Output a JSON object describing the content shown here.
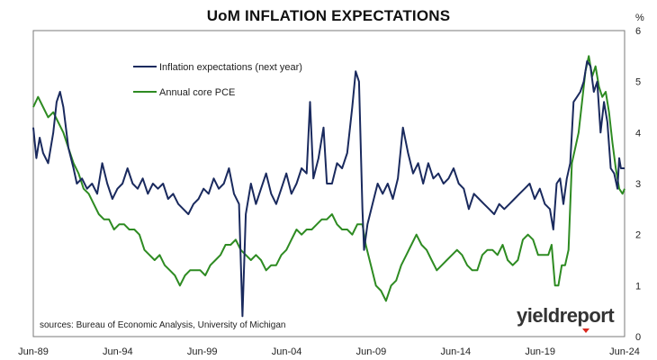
{
  "chart_data": {
    "type": "line",
    "title": "UoM INFLATION EXPECTATIONS",
    "y_unit": "%",
    "ylim": [
      0,
      6
    ],
    "y_ticks": [
      0,
      1,
      2,
      3,
      4,
      5,
      6
    ],
    "x_range": [
      1989.42,
      2024.42
    ],
    "x_ticks": [
      {
        "label": "Jun-89",
        "x": 1989.42
      },
      {
        "label": "Jun-94",
        "x": 1994.42
      },
      {
        "label": "Jun-99",
        "x": 1999.42
      },
      {
        "label": "Jun-04",
        "x": 2004.42
      },
      {
        "label": "Jun-09",
        "x": 2009.42
      },
      {
        "label": "Jun-14",
        "x": 2014.42
      },
      {
        "label": "Jun-19",
        "x": 2019.42
      },
      {
        "label": "Jun-24",
        "x": 2024.42
      }
    ],
    "grid": false,
    "legend": "top-left",
    "series": [
      {
        "name": "Inflation expectations (next year)",
        "color": "#1a2a5e",
        "points": [
          [
            1989.42,
            4.1
          ],
          [
            1989.6,
            3.5
          ],
          [
            1989.8,
            3.9
          ],
          [
            1990.0,
            3.6
          ],
          [
            1990.3,
            3.4
          ],
          [
            1990.6,
            4.0
          ],
          [
            1990.8,
            4.6
          ],
          [
            1991.0,
            4.8
          ],
          [
            1991.2,
            4.5
          ],
          [
            1991.5,
            3.7
          ],
          [
            1991.8,
            3.3
          ],
          [
            1992.0,
            3.0
          ],
          [
            1992.3,
            3.1
          ],
          [
            1992.6,
            2.9
          ],
          [
            1992.9,
            3.0
          ],
          [
            1993.2,
            2.8
          ],
          [
            1993.5,
            3.4
          ],
          [
            1993.8,
            3.0
          ],
          [
            1994.1,
            2.7
          ],
          [
            1994.4,
            2.9
          ],
          [
            1994.7,
            3.0
          ],
          [
            1995.0,
            3.3
          ],
          [
            1995.3,
            3.0
          ],
          [
            1995.6,
            2.9
          ],
          [
            1995.9,
            3.1
          ],
          [
            1996.2,
            2.8
          ],
          [
            1996.5,
            3.0
          ],
          [
            1996.8,
            2.9
          ],
          [
            1997.1,
            3.0
          ],
          [
            1997.4,
            2.7
          ],
          [
            1997.7,
            2.8
          ],
          [
            1998.0,
            2.6
          ],
          [
            1998.3,
            2.5
          ],
          [
            1998.6,
            2.4
          ],
          [
            1998.9,
            2.6
          ],
          [
            1999.2,
            2.7
          ],
          [
            1999.5,
            2.9
          ],
          [
            1999.8,
            2.8
          ],
          [
            2000.1,
            3.1
          ],
          [
            2000.4,
            2.9
          ],
          [
            2000.7,
            3.0
          ],
          [
            2001.0,
            3.3
          ],
          [
            2001.3,
            2.8
          ],
          [
            2001.6,
            2.6
          ],
          [
            2001.8,
            0.4
          ],
          [
            2002.0,
            2.4
          ],
          [
            2002.3,
            3.0
          ],
          [
            2002.6,
            2.6
          ],
          [
            2002.9,
            2.9
          ],
          [
            2003.2,
            3.2
          ],
          [
            2003.5,
            2.8
          ],
          [
            2003.8,
            2.6
          ],
          [
            2004.1,
            2.9
          ],
          [
            2004.4,
            3.2
          ],
          [
            2004.7,
            2.8
          ],
          [
            2005.0,
            3.0
          ],
          [
            2005.3,
            3.3
          ],
          [
            2005.6,
            3.2
          ],
          [
            2005.8,
            4.6
          ],
          [
            2006.0,
            3.1
          ],
          [
            2006.3,
            3.5
          ],
          [
            2006.6,
            4.1
          ],
          [
            2006.8,
            3.0
          ],
          [
            2007.1,
            3.0
          ],
          [
            2007.4,
            3.4
          ],
          [
            2007.7,
            3.3
          ],
          [
            2008.0,
            3.6
          ],
          [
            2008.3,
            4.5
          ],
          [
            2008.5,
            5.2
          ],
          [
            2008.7,
            5.0
          ],
          [
            2008.9,
            2.5
          ],
          [
            2009.0,
            1.7
          ],
          [
            2009.2,
            2.2
          ],
          [
            2009.5,
            2.6
          ],
          [
            2009.8,
            3.0
          ],
          [
            2010.1,
            2.8
          ],
          [
            2010.4,
            3.0
          ],
          [
            2010.7,
            2.7
          ],
          [
            2011.0,
            3.1
          ],
          [
            2011.3,
            4.1
          ],
          [
            2011.6,
            3.6
          ],
          [
            2011.9,
            3.2
          ],
          [
            2012.2,
            3.4
          ],
          [
            2012.5,
            3.0
          ],
          [
            2012.8,
            3.4
          ],
          [
            2013.1,
            3.1
          ],
          [
            2013.4,
            3.2
          ],
          [
            2013.7,
            3.0
          ],
          [
            2014.0,
            3.1
          ],
          [
            2014.3,
            3.3
          ],
          [
            2014.6,
            3.0
          ],
          [
            2014.9,
            2.9
          ],
          [
            2015.2,
            2.5
          ],
          [
            2015.5,
            2.8
          ],
          [
            2015.8,
            2.7
          ],
          [
            2016.1,
            2.6
          ],
          [
            2016.4,
            2.5
          ],
          [
            2016.7,
            2.4
          ],
          [
            2017.0,
            2.6
          ],
          [
            2017.3,
            2.5
          ],
          [
            2017.6,
            2.6
          ],
          [
            2017.9,
            2.7
          ],
          [
            2018.2,
            2.8
          ],
          [
            2018.5,
            2.9
          ],
          [
            2018.8,
            3.0
          ],
          [
            2019.1,
            2.7
          ],
          [
            2019.4,
            2.9
          ],
          [
            2019.7,
            2.6
          ],
          [
            2020.0,
            2.5
          ],
          [
            2020.2,
            2.1
          ],
          [
            2020.4,
            3.0
          ],
          [
            2020.6,
            3.1
          ],
          [
            2020.8,
            2.6
          ],
          [
            2021.0,
            3.1
          ],
          [
            2021.2,
            3.4
          ],
          [
            2021.4,
            4.6
          ],
          [
            2021.6,
            4.7
          ],
          [
            2021.8,
            4.8
          ],
          [
            2022.0,
            5.0
          ],
          [
            2022.2,
            5.4
          ],
          [
            2022.4,
            5.3
          ],
          [
            2022.6,
            4.8
          ],
          [
            2022.8,
            5.0
          ],
          [
            2023.0,
            4.0
          ],
          [
            2023.2,
            4.6
          ],
          [
            2023.4,
            4.2
          ],
          [
            2023.6,
            3.3
          ],
          [
            2023.8,
            3.2
          ],
          [
            2024.0,
            2.9
          ],
          [
            2024.1,
            3.5
          ],
          [
            2024.2,
            3.3
          ],
          [
            2024.42,
            3.3
          ]
        ]
      },
      {
        "name": "Annual core PCE",
        "color": "#2e8b22",
        "points": [
          [
            1989.42,
            4.5
          ],
          [
            1989.7,
            4.7
          ],
          [
            1990.0,
            4.5
          ],
          [
            1990.3,
            4.3
          ],
          [
            1990.6,
            4.4
          ],
          [
            1990.9,
            4.2
          ],
          [
            1991.2,
            4.0
          ],
          [
            1991.5,
            3.7
          ],
          [
            1991.8,
            3.4
          ],
          [
            1992.1,
            3.2
          ],
          [
            1992.4,
            2.9
          ],
          [
            1992.7,
            2.8
          ],
          [
            1993.0,
            2.6
          ],
          [
            1993.3,
            2.4
          ],
          [
            1993.6,
            2.3
          ],
          [
            1993.9,
            2.3
          ],
          [
            1994.2,
            2.1
          ],
          [
            1994.5,
            2.2
          ],
          [
            1994.8,
            2.2
          ],
          [
            1995.1,
            2.1
          ],
          [
            1995.4,
            2.1
          ],
          [
            1995.7,
            2.0
          ],
          [
            1996.0,
            1.7
          ],
          [
            1996.3,
            1.6
          ],
          [
            1996.6,
            1.5
          ],
          [
            1996.9,
            1.6
          ],
          [
            1997.2,
            1.4
          ],
          [
            1997.5,
            1.3
          ],
          [
            1997.8,
            1.2
          ],
          [
            1998.1,
            1.0
          ],
          [
            1998.4,
            1.2
          ],
          [
            1998.7,
            1.3
          ],
          [
            1999.0,
            1.3
          ],
          [
            1999.3,
            1.3
          ],
          [
            1999.6,
            1.2
          ],
          [
            1999.9,
            1.4
          ],
          [
            2000.2,
            1.5
          ],
          [
            2000.5,
            1.6
          ],
          [
            2000.8,
            1.8
          ],
          [
            2001.1,
            1.8
          ],
          [
            2001.4,
            1.9
          ],
          [
            2001.7,
            1.7
          ],
          [
            2002.0,
            1.6
          ],
          [
            2002.3,
            1.5
          ],
          [
            2002.6,
            1.6
          ],
          [
            2002.9,
            1.5
          ],
          [
            2003.2,
            1.3
          ],
          [
            2003.5,
            1.4
          ],
          [
            2003.8,
            1.4
          ],
          [
            2004.1,
            1.6
          ],
          [
            2004.4,
            1.7
          ],
          [
            2004.7,
            1.9
          ],
          [
            2005.0,
            2.1
          ],
          [
            2005.3,
            2.0
          ],
          [
            2005.6,
            2.1
          ],
          [
            2005.9,
            2.1
          ],
          [
            2006.2,
            2.2
          ],
          [
            2006.5,
            2.3
          ],
          [
            2006.8,
            2.3
          ],
          [
            2007.1,
            2.4
          ],
          [
            2007.4,
            2.2
          ],
          [
            2007.7,
            2.1
          ],
          [
            2008.0,
            2.1
          ],
          [
            2008.3,
            2.0
          ],
          [
            2008.6,
            2.2
          ],
          [
            2008.9,
            2.2
          ],
          [
            2009.1,
            1.8
          ],
          [
            2009.4,
            1.4
          ],
          [
            2009.7,
            1.0
          ],
          [
            2010.0,
            0.9
          ],
          [
            2010.3,
            0.7
          ],
          [
            2010.6,
            1.0
          ],
          [
            2010.9,
            1.1
          ],
          [
            2011.2,
            1.4
          ],
          [
            2011.5,
            1.6
          ],
          [
            2011.8,
            1.8
          ],
          [
            2012.1,
            2.0
          ],
          [
            2012.4,
            1.8
          ],
          [
            2012.7,
            1.7
          ],
          [
            2013.0,
            1.5
          ],
          [
            2013.3,
            1.3
          ],
          [
            2013.6,
            1.4
          ],
          [
            2013.9,
            1.5
          ],
          [
            2014.2,
            1.6
          ],
          [
            2014.5,
            1.7
          ],
          [
            2014.8,
            1.6
          ],
          [
            2015.1,
            1.4
          ],
          [
            2015.4,
            1.3
          ],
          [
            2015.7,
            1.3
          ],
          [
            2016.0,
            1.6
          ],
          [
            2016.3,
            1.7
          ],
          [
            2016.6,
            1.7
          ],
          [
            2016.9,
            1.6
          ],
          [
            2017.2,
            1.8
          ],
          [
            2017.5,
            1.5
          ],
          [
            2017.8,
            1.4
          ],
          [
            2018.1,
            1.5
          ],
          [
            2018.4,
            1.9
          ],
          [
            2018.7,
            2.0
          ],
          [
            2019.0,
            1.9
          ],
          [
            2019.3,
            1.6
          ],
          [
            2019.6,
            1.6
          ],
          [
            2019.9,
            1.6
          ],
          [
            2020.1,
            1.8
          ],
          [
            2020.3,
            1.0
          ],
          [
            2020.5,
            1.0
          ],
          [
            2020.7,
            1.4
          ],
          [
            2020.9,
            1.4
          ],
          [
            2021.1,
            1.7
          ],
          [
            2021.3,
            3.4
          ],
          [
            2021.5,
            3.7
          ],
          [
            2021.7,
            4.0
          ],
          [
            2021.9,
            4.6
          ],
          [
            2022.1,
            5.2
          ],
          [
            2022.3,
            5.5
          ],
          [
            2022.5,
            5.1
          ],
          [
            2022.7,
            5.3
          ],
          [
            2022.9,
            4.9
          ],
          [
            2023.1,
            4.7
          ],
          [
            2023.3,
            4.8
          ],
          [
            2023.5,
            4.4
          ],
          [
            2023.7,
            3.8
          ],
          [
            2023.9,
            3.3
          ],
          [
            2024.1,
            2.9
          ],
          [
            2024.3,
            2.8
          ],
          [
            2024.42,
            2.9
          ]
        ]
      }
    ],
    "source_note": "sources: Bureau of Economic Analysis, University of Michigan"
  },
  "logo_text": "yieldreport"
}
